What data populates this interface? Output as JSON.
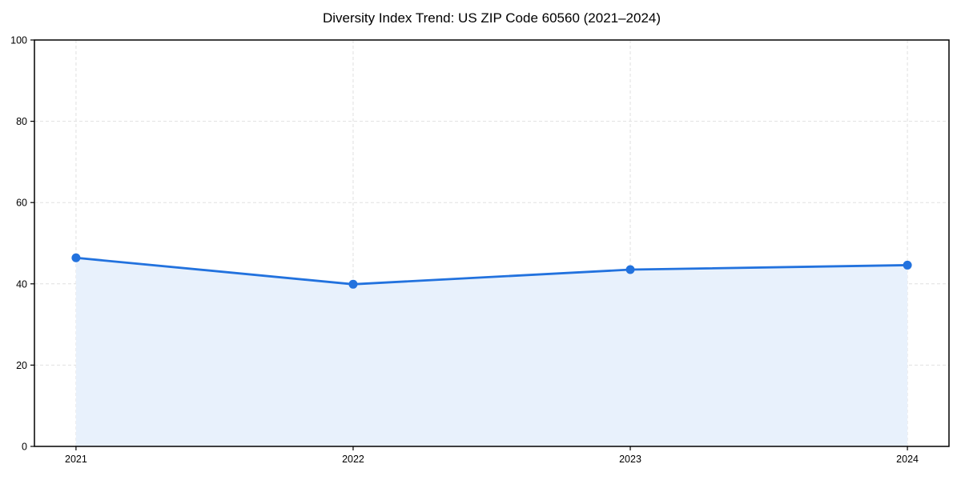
{
  "chart_data": {
    "type": "area",
    "title": "Diversity Index Trend: US ZIP Code 60560 (2021–2024)",
    "categories": [
      "2021",
      "2022",
      "2023",
      "2024"
    ],
    "series": [
      {
        "name": "Diversity Index",
        "values": [
          46.4,
          39.9,
          43.5,
          44.6
        ]
      }
    ],
    "xlabel": "",
    "ylabel": "",
    "ylim": [
      0,
      100
    ],
    "yticks": [
      0,
      20,
      40,
      60,
      80,
      100
    ],
    "grid": true,
    "grid_style": "dashed",
    "legend_position": "none",
    "colors": {
      "line": "#2272de",
      "marker": "#2272de",
      "fill": "#e8f1fc",
      "gridline": "#e0e0e0",
      "spine": "#000000",
      "tick_text": "#000000",
      "background": "#ffffff"
    }
  }
}
